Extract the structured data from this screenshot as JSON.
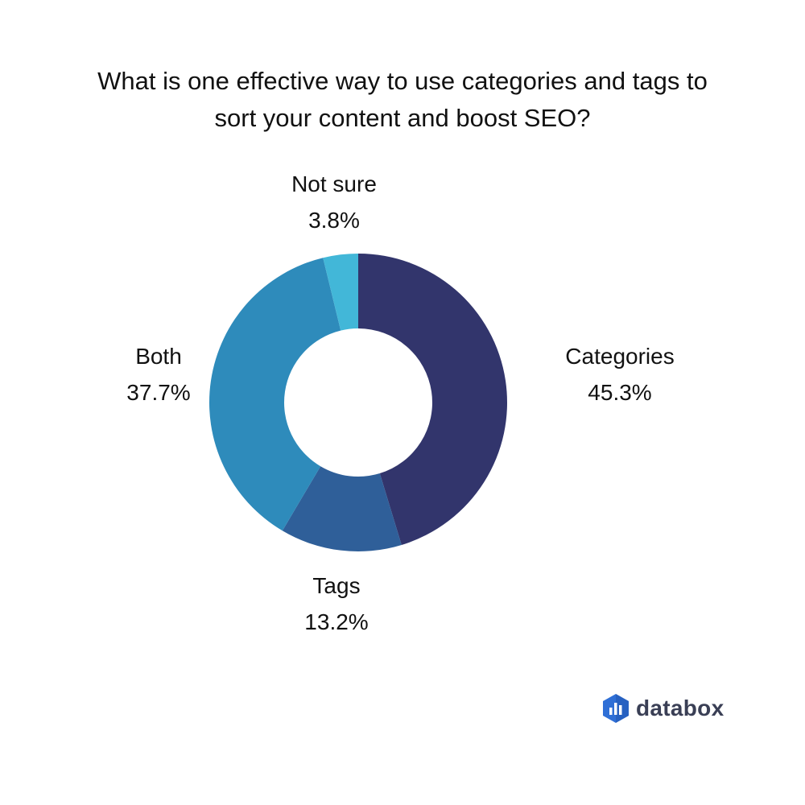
{
  "title_lines": [
    "What is one effective way to use categories and tags to",
    "sort your content and boost SEO?"
  ],
  "chart_data": {
    "type": "pie",
    "title": "What is one effective way to use categories and tags to sort your content and boost SEO?",
    "style": "donut",
    "slices": [
      {
        "label": "Categories",
        "value": 45.3,
        "display": "45.3%",
        "color": "#32356c"
      },
      {
        "label": "Tags",
        "value": 13.2,
        "display": "13.2%",
        "color": "#2f5f99"
      },
      {
        "label": "Both",
        "value": 37.7,
        "display": "37.7%",
        "color": "#2e8bbb"
      },
      {
        "label": "Not sure",
        "value": 3.8,
        "display": "3.8%",
        "color": "#42b7d8"
      }
    ],
    "start_angle": "12 o'clock",
    "direction": "clockwise",
    "legend": "none"
  },
  "brand": {
    "name": "databox",
    "logo_icon": "databox-logo-icon"
  }
}
